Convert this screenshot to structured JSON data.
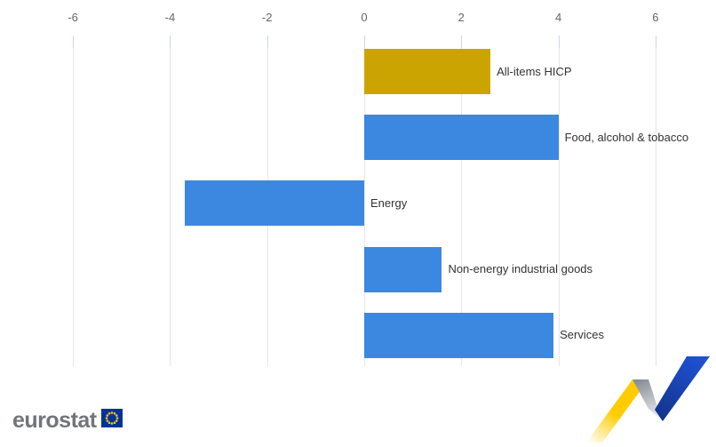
{
  "chart_data": {
    "type": "bar",
    "orientation": "horizontal",
    "title": "",
    "categories": [
      "All-items HICP",
      "Food, alcohol & tobacco",
      "Energy",
      "Non-energy industrial goods",
      "Services"
    ],
    "values": [
      2.6,
      4.0,
      -3.7,
      1.6,
      3.9
    ],
    "colors": [
      "#CCA402",
      "#3C88E1",
      "#3C88E1",
      "#3C88E1",
      "#3C88E1"
    ],
    "axis_position": "top",
    "ticks": [
      -6,
      -4,
      -2,
      0,
      2,
      4,
      6
    ],
    "tick_labels": [
      "-6",
      "-4",
      "-2",
      "0",
      "2",
      "4",
      "6"
    ],
    "xlim": [
      -7.3,
      7.3
    ],
    "grid": true,
    "legend": "none"
  },
  "brand": {
    "wordmark": "eurostat",
    "flag_blue": "#003399",
    "flag_star_yellow": "#FFCC00"
  },
  "ribbon_logo": {
    "yellow": "#FFCC00",
    "gray_dark": "#878E96",
    "gray_light": "#EEEFF1",
    "blue_dark": "#14348C",
    "blue_bright": "#1E52D6"
  }
}
